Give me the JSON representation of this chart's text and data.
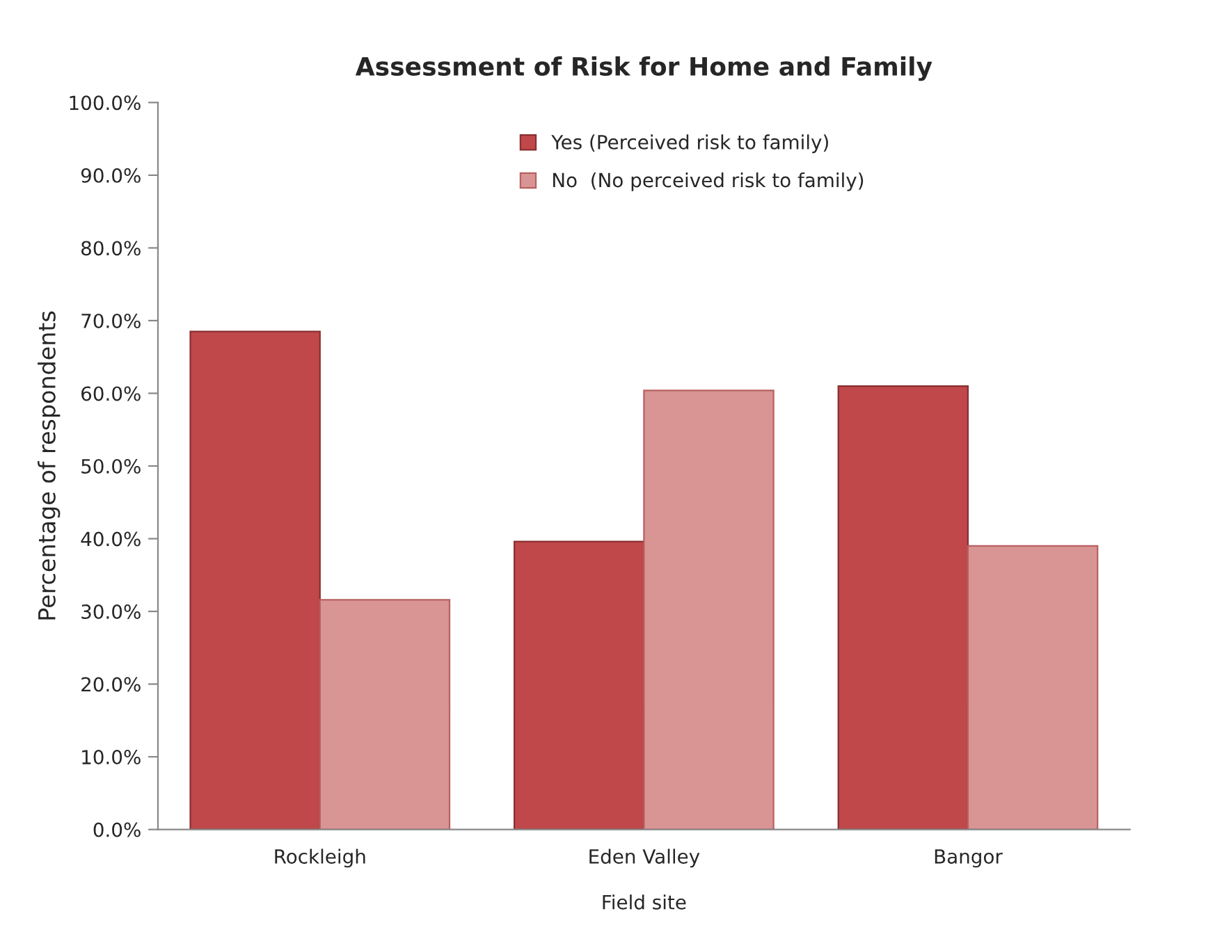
{
  "chart_data": {
    "type": "bar",
    "title": "Assessment of Risk for Home and Family",
    "xlabel": "Field site",
    "ylabel": "Percentage of respondents",
    "categories": [
      "Rockleigh",
      "Eden Valley",
      "Bangor"
    ],
    "series": [
      {
        "name": "Yes (Perceived risk to family)",
        "color": "#c0484a",
        "values": [
          68.5,
          39.6,
          61.0
        ]
      },
      {
        "name": "No  (No perceived risk to family)",
        "color": "#d99594",
        "values": [
          31.6,
          60.4,
          39.0
        ]
      }
    ],
    "ylim": [
      0,
      100
    ],
    "yticks": [
      {
        "value": 0,
        "label": "0.0%"
      },
      {
        "value": 10,
        "label": "10.0%"
      },
      {
        "value": 20,
        "label": "20.0%"
      },
      {
        "value": 30,
        "label": "30.0%"
      },
      {
        "value": 40,
        "label": "40.0%"
      },
      {
        "value": 50,
        "label": "50.0%"
      },
      {
        "value": 60,
        "label": "60.0%"
      },
      {
        "value": 70,
        "label": "70.0%"
      },
      {
        "value": 80,
        "label": "80.0%"
      },
      {
        "value": 90,
        "label": "90.0%"
      },
      {
        "value": 100,
        "label": "100.0%"
      }
    ],
    "legend": "top",
    "grid": false
  }
}
